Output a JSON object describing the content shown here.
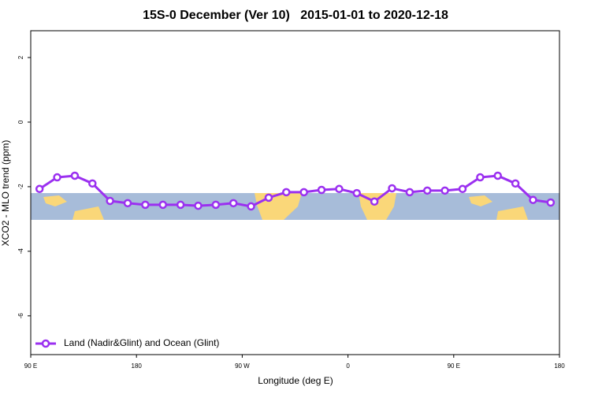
{
  "chart_data": {
    "type": "line",
    "title": "15S-0 December (Ver 10)   2015-01-01 to 2020-12-18",
    "x_label": "Longitude (deg E)",
    "y_label": "XCO2 - MLO trend (ppm)",
    "x": [
      97.5,
      112.5,
      127.5,
      142.5,
      157.5,
      172.5,
      187.5,
      202.5,
      217.5,
      232.5,
      247.5,
      262.5,
      277.5,
      292.5,
      307.5,
      322.5,
      337.5,
      352.5,
      367.5,
      382.5,
      397.5,
      412.5,
      427.5,
      442.5,
      457.5,
      472.5,
      487.5,
      502.5,
      517.5,
      532.5
    ],
    "series": [
      {
        "name": "Land (Nadir&Glint) and Ocean (Glint)",
        "color": "#9b30f0",
        "values": [
          -2.07,
          -1.71,
          -1.66,
          -1.9,
          -2.44,
          -2.51,
          -2.56,
          -2.56,
          -2.56,
          -2.59,
          -2.56,
          -2.51,
          -2.61,
          -2.34,
          -2.17,
          -2.17,
          -2.1,
          -2.07,
          -2.2,
          -2.46,
          -2.05,
          -2.17,
          -2.12,
          -2.12,
          -2.07,
          -1.71,
          -1.66,
          -1.9,
          -2.41,
          -2.49
        ]
      }
    ],
    "xlim": [
      90,
      540
    ],
    "xticks": [
      {
        "value": 90,
        "label": "90 E"
      },
      {
        "value": 180,
        "label": "180"
      },
      {
        "value": 270,
        "label": "90 W"
      },
      {
        "value": 360,
        "label": "0"
      },
      {
        "value": 450,
        "label": "90 E"
      },
      {
        "value": 540,
        "label": "180"
      }
    ],
    "ylim": [
      -7.2,
      2.83
    ],
    "yticks": [
      2,
      0,
      -2,
      -4,
      -6
    ],
    "legend": "bottom-left"
  }
}
